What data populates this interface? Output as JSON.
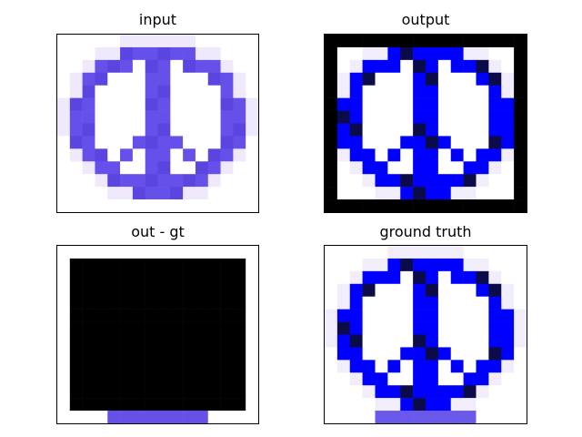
{
  "panels": [
    {
      "id": "input",
      "title": "input"
    },
    {
      "id": "output",
      "title": "output"
    },
    {
      "id": "diff",
      "title": "out - gt"
    },
    {
      "id": "gt",
      "title": "ground truth"
    }
  ]
}
